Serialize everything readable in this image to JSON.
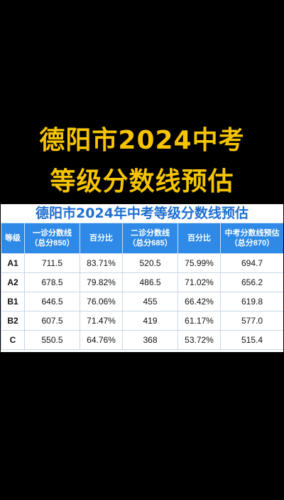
{
  "headline": {
    "line1": "德阳市2024中考",
    "line2": "等级分数线预估",
    "color": "#f5c400"
  },
  "table": {
    "title": "德阳市2024年中考等级分数线预估",
    "headers": [
      {
        "main": "等级",
        "sub": ""
      },
      {
        "main": "一诊分数线",
        "sub": "（总分850）"
      },
      {
        "main": "百分比",
        "sub": ""
      },
      {
        "main": "二诊分数线",
        "sub": "（总分685）"
      },
      {
        "main": "百分比",
        "sub": ""
      },
      {
        "main": "中考分数线预估",
        "sub": "（总分870）"
      }
    ],
    "rows": [
      [
        "A1",
        "711.5",
        "83.71%",
        "520.5",
        "75.99%",
        "694.7"
      ],
      [
        "A2",
        "678.5",
        "79.82%",
        "486.5",
        "71.02%",
        "656.2"
      ],
      [
        "B1",
        "646.5",
        "76.06%",
        "455",
        "66.42%",
        "619.8"
      ],
      [
        "B2",
        "607.5",
        "71.47%",
        "419",
        "61.17%",
        "577.0"
      ],
      [
        "C",
        "550.5",
        "64.76%",
        "368",
        "53.72%",
        "515.4"
      ]
    ],
    "header_color": "#2e8ae6",
    "title_color": "#1f6fd0"
  }
}
